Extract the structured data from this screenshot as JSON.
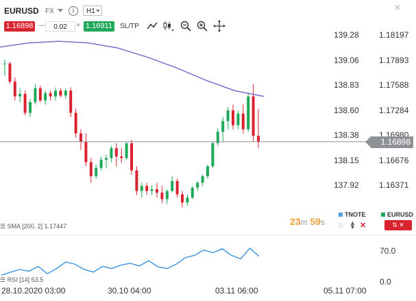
{
  "header": {
    "symbol": "EURUSD",
    "market": "FX",
    "timeframe": "H1",
    "info_glyph": "i",
    "close_glyph": "✕"
  },
  "trade": {
    "sell_price": "1.16898",
    "minus": "—",
    "quantity": "0.02",
    "plus": "+",
    "buy_price": "1.16911",
    "sltp_label": "SL/TP"
  },
  "toolbar_icons": [
    "draw-line-icon",
    "candle-type-icon",
    "zoom-out-icon",
    "zoom-in-icon",
    "crosshair-icon"
  ],
  "axis_left": [
    "139.28",
    "139.06",
    "138.83",
    "138.60",
    "138.38",
    "138.15",
    "137.92"
  ],
  "axis_right": [
    "1.18197",
    "1.17893",
    "1.17588",
    "1.17284",
    "1.16980",
    "1.16676",
    "1.16371"
  ],
  "current_price": "1.16898",
  "x_labels": [
    "28.10.2020 03:00",
    "30.10 04:00",
    "03.11 06:00",
    "05.11 07:00"
  ],
  "indicators": {
    "sma_label": "SMA [200, 2] 1.17447",
    "rsi_label": "RSI [14] 53.5",
    "rsi_axis": [
      "70.0",
      "0.0"
    ]
  },
  "timer": {
    "minutes": "23",
    "min_unit": "m",
    "seconds": "59",
    "sec_unit": "s"
  },
  "legend": {
    "left": "TNOTE",
    "right": "EURUSD"
  },
  "colors": {
    "up": "#20a85a",
    "down": "#d9232e",
    "sma": "#7d5ec7",
    "rsi": "#2c8be0",
    "price_line": "#8e9196"
  },
  "chart_data": {
    "type": "candlestick",
    "y_axis_right": [
      1.16371,
      1.18197
    ],
    "candles_right_axis_values": [
      [
        1.1785,
        1.179,
        1.177,
        1.1785
      ],
      [
        1.1785,
        1.1787,
        1.176,
        1.1763
      ],
      [
        1.1763,
        1.1768,
        1.174,
        1.1745
      ],
      [
        1.1745,
        1.1755,
        1.1738,
        1.1748
      ],
      [
        1.1748,
        1.1752,
        1.1722,
        1.1725
      ],
      [
        1.1725,
        1.1742,
        1.172,
        1.1738
      ],
      [
        1.1738,
        1.176,
        1.1735,
        1.1755
      ],
      [
        1.1755,
        1.1758,
        1.1738,
        1.174
      ],
      [
        1.174,
        1.1752,
        1.1735,
        1.1749
      ],
      [
        1.1749,
        1.1752,
        1.174,
        1.1745
      ],
      [
        1.1745,
        1.1756,
        1.174,
        1.1752
      ],
      [
        1.1752,
        1.1755,
        1.1744,
        1.1746
      ],
      [
        1.1746,
        1.1755,
        1.1742,
        1.1752
      ],
      [
        1.1752,
        1.1756,
        1.172,
        1.1725
      ],
      [
        1.1725,
        1.173,
        1.1695,
        1.17
      ],
      [
        1.17,
        1.1705,
        1.168,
        1.169
      ],
      [
        1.169,
        1.17,
        1.166,
        1.1665
      ],
      [
        1.1665,
        1.167,
        1.164,
        1.1648
      ],
      [
        1.1648,
        1.1662,
        1.1645,
        1.1658
      ],
      [
        1.1658,
        1.1672,
        1.1655,
        1.1668
      ],
      [
        1.1668,
        1.1674,
        1.1658,
        1.167
      ],
      [
        1.167,
        1.1685,
        1.1665,
        1.1682
      ],
      [
        1.1682,
        1.1688,
        1.166,
        1.1672
      ],
      [
        1.1672,
        1.1682,
        1.1664,
        1.167
      ],
      [
        1.167,
        1.169,
        1.1668,
        1.1688
      ],
      [
        1.1688,
        1.1692,
        1.165,
        1.1655
      ],
      [
        1.1655,
        1.166,
        1.1625,
        1.163
      ],
      [
        1.163,
        1.164,
        1.1622,
        1.1636
      ],
      [
        1.1636,
        1.164,
        1.1625,
        1.163
      ],
      [
        1.163,
        1.1637,
        1.1625,
        1.1632
      ],
      [
        1.1632,
        1.164,
        1.1622,
        1.1628
      ],
      [
        1.1628,
        1.1636,
        1.1615,
        1.162
      ],
      [
        1.162,
        1.1632,
        1.1614,
        1.163
      ],
      [
        1.163,
        1.1648,
        1.1628,
        1.1642
      ],
      [
        1.1642,
        1.1645,
        1.1622,
        1.1626
      ],
      [
        1.1626,
        1.163,
        1.161,
        1.1616
      ],
      [
        1.1616,
        1.1626,
        1.1612,
        1.1622
      ],
      [
        1.1622,
        1.1636,
        1.162,
        1.1634
      ],
      [
        1.1634,
        1.1642,
        1.163,
        1.164
      ],
      [
        1.164,
        1.165,
        1.1636,
        1.1648
      ],
      [
        1.1648,
        1.1662,
        1.1645,
        1.166
      ],
      [
        1.166,
        1.169,
        1.1658,
        1.1688
      ],
      [
        1.1688,
        1.1706,
        1.1685,
        1.1702
      ],
      [
        1.1702,
        1.172,
        1.169,
        1.1715
      ],
      [
        1.1715,
        1.1732,
        1.1705,
        1.1728
      ],
      [
        1.1728,
        1.1735,
        1.1705,
        1.171
      ],
      [
        1.171,
        1.1728,
        1.1705,
        1.1724
      ],
      [
        1.1724,
        1.1735,
        1.17,
        1.1705
      ],
      [
        1.1705,
        1.175,
        1.1702,
        1.1745
      ],
      [
        1.1745,
        1.176,
        1.169,
        1.1697
      ],
      [
        1.1697,
        1.173,
        1.1682,
        1.169
      ]
    ],
    "sma_right_axis_values": [
      1.1805,
      1.181,
      1.1812,
      1.181,
      1.1804,
      1.1793,
      1.178,
      1.1765,
      1.1752,
      1.1745
    ],
    "rsi_values": [
      15,
      22,
      28,
      24,
      35,
      18,
      30,
      45,
      40,
      28,
      22,
      35,
      30,
      38,
      42,
      36,
      48,
      34,
      30,
      40,
      55,
      60,
      72,
      66,
      75,
      60,
      52,
      76,
      58
    ],
    "rsi_axis": [
      0,
      70
    ]
  }
}
